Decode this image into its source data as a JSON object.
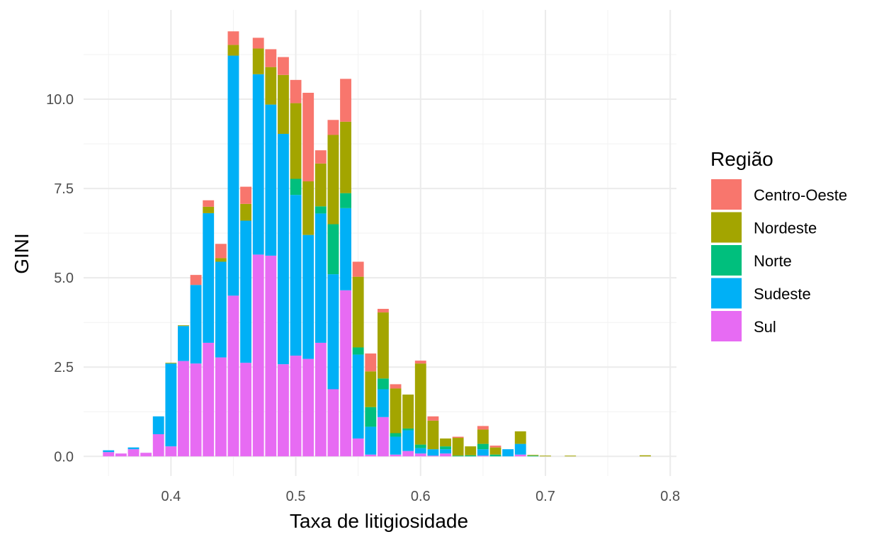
{
  "chart_data": {
    "type": "bar",
    "stacked": true,
    "xlabel": "Taxa de litigiosidade",
    "ylabel": "GINI",
    "xlim": [
      0.33,
      0.805
    ],
    "ylim": [
      -0.55,
      12.5
    ],
    "x_ticks": [
      0.4,
      0.5,
      0.6,
      0.7,
      0.8
    ],
    "x_tick_labels": [
      "0.4",
      "0.5",
      "0.6",
      "0.7",
      "0.8"
    ],
    "y_ticks": [
      0,
      2.5,
      5,
      7.5,
      10
    ],
    "y_tick_labels": [
      "0.0",
      "2.5",
      "5.0",
      "7.5",
      "10.0"
    ],
    "bin_width": 0.01,
    "legend": {
      "title": "Região",
      "position": "right",
      "entries": [
        {
          "key": "Centro-Oeste",
          "label": "Centro-Oeste",
          "color": "#F8766D"
        },
        {
          "key": "Nordeste",
          "label": "Nordeste",
          "color": "#A3A500"
        },
        {
          "key": "Norte",
          "label": "Norte",
          "color": "#00BF7D"
        },
        {
          "key": "Sudeste",
          "label": "Sudeste",
          "color": "#00B0F6"
        },
        {
          "key": "Sul",
          "label": "Sul",
          "color": "#E76BF3"
        }
      ]
    },
    "stack_order": [
      "Sul",
      "Sudeste",
      "Norte",
      "Nordeste",
      "Centro-Oeste"
    ],
    "x": [
      0.35,
      0.36,
      0.37,
      0.38,
      0.39,
      0.4,
      0.41,
      0.42,
      0.43,
      0.44,
      0.45,
      0.46,
      0.47,
      0.48,
      0.49,
      0.5,
      0.51,
      0.52,
      0.53,
      0.54,
      0.55,
      0.56,
      0.57,
      0.58,
      0.59,
      0.6,
      0.61,
      0.62,
      0.63,
      0.64,
      0.65,
      0.66,
      0.67,
      0.68,
      0.69,
      0.7,
      0.71,
      0.72,
      0.78
    ],
    "series": [
      {
        "name": "Sul",
        "values": [
          0.12,
          0.08,
          0.2,
          0.1,
          0.62,
          0.28,
          2.67,
          2.6,
          3.18,
          2.77,
          4.5,
          2.62,
          5.65,
          5.62,
          2.58,
          2.82,
          2.73,
          3.18,
          1.88,
          4.65,
          0.5,
          0.05,
          1.1,
          0.05,
          0.15,
          0.08,
          0.02,
          0.08,
          0,
          0,
          0.02,
          0,
          0,
          0.05,
          0,
          0,
          0,
          0,
          0
        ]
      },
      {
        "name": "Sudeste",
        "values": [
          0.05,
          0,
          0.05,
          0,
          0.5,
          2.32,
          0.98,
          2.2,
          3.63,
          2.68,
          6.72,
          3.98,
          5.05,
          4.23,
          6.45,
          4.5,
          3.47,
          3.62,
          3.22,
          2.3,
          2.35,
          0.78,
          0.78,
          0.5,
          0.58,
          0.15,
          0.18,
          0.12,
          0,
          0,
          0.18,
          0,
          0.2,
          0.3,
          0,
          0,
          0,
          0,
          0
        ]
      },
      {
        "name": "Norte",
        "values": [
          0,
          0,
          0,
          0,
          0,
          0,
          0,
          0,
          0,
          0,
          0,
          0,
          0,
          0,
          0,
          0.45,
          0,
          0.2,
          1.4,
          0.42,
          0.2,
          0.55,
          0.3,
          0.1,
          0.05,
          0.1,
          0,
          0.08,
          0.02,
          0.03,
          0.15,
          0.05,
          0,
          0,
          0.02,
          0,
          0,
          0,
          0
        ]
      },
      {
        "name": "Nordeste",
        "values": [
          0,
          0,
          0,
          0,
          0,
          0.02,
          0.02,
          0,
          0.18,
          0.1,
          0.3,
          0.47,
          0.72,
          1.05,
          1.65,
          2.12,
          1.5,
          1.2,
          2.5,
          2.0,
          1.98,
          1.0,
          1.85,
          1.25,
          0.95,
          2.27,
          0.8,
          0.22,
          0.5,
          0.25,
          0.4,
          0.2,
          0,
          0.35,
          0.02,
          0.02,
          0,
          0.02,
          0.03
        ]
      },
      {
        "name": "Centro-Oeste",
        "values": [
          0,
          0,
          0,
          0,
          0,
          0,
          0,
          0.28,
          0.18,
          0.4,
          0.38,
          0.48,
          0.3,
          0.5,
          0.5,
          0.65,
          2.48,
          0.37,
          0.42,
          1.2,
          0.42,
          0.5,
          0.1,
          0.12,
          0,
          0.08,
          0.12,
          0,
          0.03,
          0,
          0.1,
          0.05,
          0,
          0,
          0,
          0,
          0,
          0,
          0
        ]
      }
    ]
  }
}
